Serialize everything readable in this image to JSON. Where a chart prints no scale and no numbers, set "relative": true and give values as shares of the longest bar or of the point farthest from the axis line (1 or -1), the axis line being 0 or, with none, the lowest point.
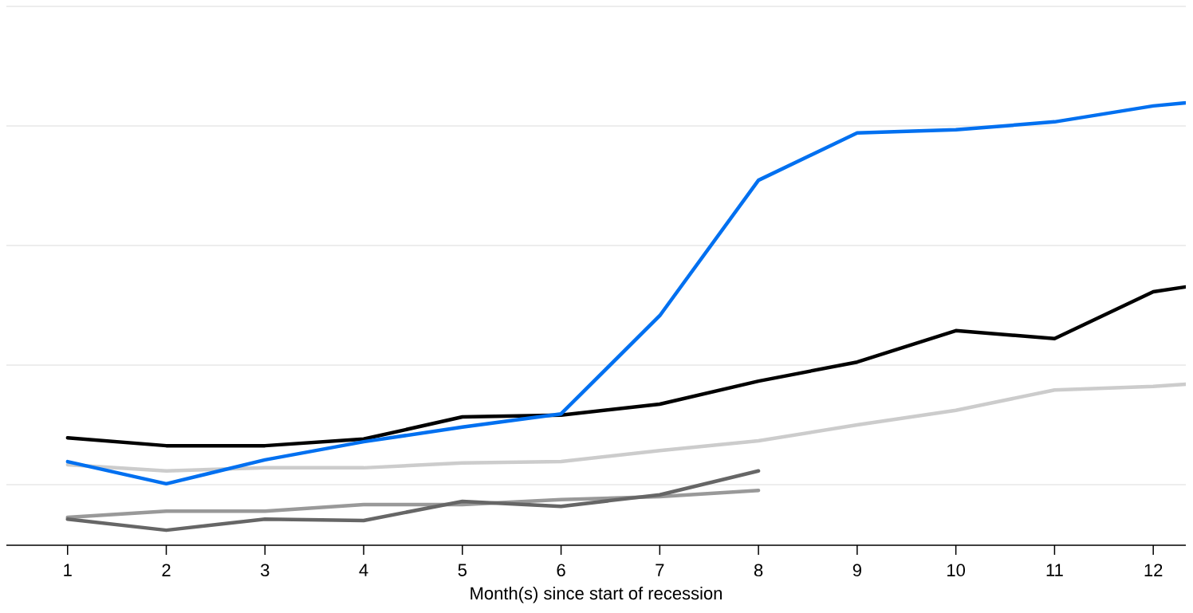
{
  "chart_data": {
    "type": "line",
    "relative": true,
    "grid": "y",
    "line_style": "solid",
    "xlabel": "Month(s) since start of recession",
    "x": [
      1,
      2,
      3,
      4,
      5,
      6,
      7,
      8,
      9,
      10,
      11,
      12,
      12.33
    ],
    "xlim": [
      0.38,
      12.33
    ],
    "xticks": [
      1,
      2,
      3,
      4,
      5,
      6,
      7,
      8,
      9,
      10,
      11,
      12
    ],
    "series": [
      {
        "color": "#cccccc",
        "values": [
          0.182,
          0.168,
          0.175,
          0.175,
          0.186,
          0.189,
          0.214,
          0.236,
          0.272,
          0.305,
          0.351,
          0.359,
          0.364
        ]
      },
      {
        "color": "#999999",
        "x": [
          1,
          2,
          3,
          4,
          5,
          6,
          7,
          8
        ],
        "values": [
          0.063,
          0.077,
          0.077,
          0.092,
          0.092,
          0.103,
          0.11,
          0.124
        ]
      },
      {
        "color": "#666666",
        "x": [
          1,
          2,
          3,
          4,
          5,
          6,
          7,
          8
        ],
        "values": [
          0.059,
          0.034,
          0.059,
          0.056,
          0.099,
          0.088,
          0.114,
          0.168
        ]
      },
      {
        "color": "#000000",
        "values": [
          0.243,
          0.225,
          0.225,
          0.24,
          0.29,
          0.294,
          0.319,
          0.371,
          0.414,
          0.485,
          0.467,
          0.573,
          0.584
        ]
      },
      {
        "color": "#0070f0",
        "values": [
          0.189,
          0.139,
          0.193,
          0.234,
          0.267,
          0.297,
          0.519,
          0.825,
          0.932,
          0.939,
          0.957,
          0.993,
          1
        ]
      }
    ]
  }
}
